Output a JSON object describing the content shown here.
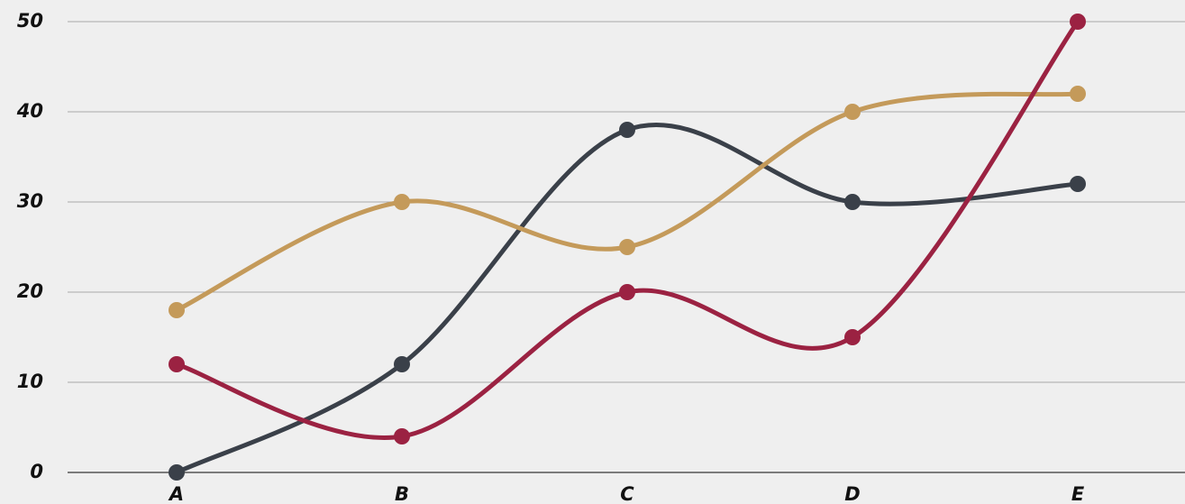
{
  "chart_data": {
    "type": "line",
    "categories": [
      "A",
      "B",
      "C",
      "D",
      "E"
    ],
    "series": [
      {
        "color": "#3a4049",
        "values": [
          0,
          12,
          38,
          30,
          32
        ]
      },
      {
        "color": "#c49a5a",
        "values": [
          18,
          30,
          25,
          40,
          42
        ]
      },
      {
        "color": "#9b2242",
        "values": [
          12,
          4,
          20,
          15,
          50
        ]
      }
    ],
    "ylim": [
      0,
      50
    ],
    "yticks": [
      0,
      10,
      20,
      30,
      40,
      50
    ],
    "grid": true,
    "smooth": true
  }
}
